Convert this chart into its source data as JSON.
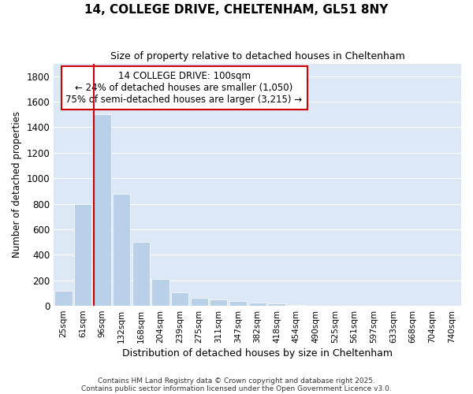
{
  "title": "14, COLLEGE DRIVE, CHELTENHAM, GL51 8NY",
  "subtitle": "Size of property relative to detached houses in Cheltenham",
  "xlabel": "Distribution of detached houses by size in Cheltenham",
  "ylabel": "Number of detached properties",
  "categories": [
    "25sqm",
    "61sqm",
    "96sqm",
    "132sqm",
    "168sqm",
    "204sqm",
    "239sqm",
    "275sqm",
    "311sqm",
    "347sqm",
    "382sqm",
    "418sqm",
    "454sqm",
    "490sqm",
    "525sqm",
    "561sqm",
    "597sqm",
    "633sqm",
    "668sqm",
    "704sqm",
    "740sqm"
  ],
  "values": [
    120,
    800,
    1500,
    880,
    500,
    210,
    105,
    65,
    50,
    35,
    25,
    20,
    5,
    3,
    2,
    2,
    1,
    1,
    1,
    1,
    1
  ],
  "bar_color": "#b8d0e8",
  "highlight_index": 2,
  "highlight_color": "#cc0000",
  "annotation_box_text": "14 COLLEGE DRIVE: 100sqm\n← 24% of detached houses are smaller (1,050)\n75% of semi-detached houses are larger (3,215) →",
  "annotation_box_color": "#cc0000",
  "footnote1": "Contains HM Land Registry data © Crown copyright and database right 2025.",
  "footnote2": "Contains public sector information licensed under the Open Government Licence v3.0.",
  "ylim": [
    0,
    1900
  ],
  "yticks": [
    0,
    200,
    400,
    600,
    800,
    1000,
    1200,
    1400,
    1600,
    1800
  ],
  "fig_bg_color": "#ffffff",
  "plot_bg_color": "#dce8f5"
}
